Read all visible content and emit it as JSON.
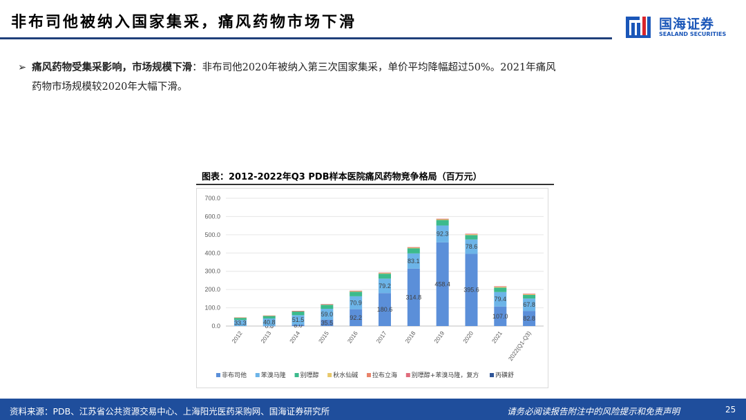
{
  "header": {
    "title": "非布司他被纳入国家集采，痛风药物市场下滑",
    "logo_cn": "国海证券",
    "logo_en": "SEALAND SECURITIES"
  },
  "bullet": {
    "arrow": "➢",
    "bold": "痛风药物受集采影响，市场规模下滑",
    "line1": "：非布司他2020年被纳入第三次国家集采，单价平均降幅超过50%。2021年痛风",
    "line2": "药物市场规模较2020年大幅下滑。"
  },
  "chart_title": "图表：2012-2022年Q3 PDB样本医院痛风药物竞争格局（百万元）",
  "chart_data": {
    "type": "bar",
    "stacked": true,
    "categories": [
      "2012",
      "2013",
      "2014",
      "2015",
      "2016",
      "2017",
      "2018",
      "2019",
      "2020",
      "2021",
      "2022(Q1-Q3)"
    ],
    "ylim": [
      0,
      700
    ],
    "yticks": [
      "0.0",
      "100.0",
      "200.0",
      "300.0",
      "400.0",
      "500.0",
      "600.0",
      "700.0"
    ],
    "grid": true,
    "legend_position": "bottom",
    "series": [
      {
        "name": "非布司他",
        "color": "#5b8fd9",
        "values": [
          0,
          0.8,
          8.0,
          35.5,
          92.2,
          180.6,
          314.8,
          458.4,
          395.6,
          107.0,
          82.8
        ],
        "labels": [
          "",
          "0.8",
          "8.0",
          "35.5",
          "92.2",
          "180.6",
          "314.8",
          "458.4",
          "395.6",
          "107.0",
          "82.8"
        ]
      },
      {
        "name": "苯溴马隆",
        "color": "#6cb4e8",
        "values": [
          33.3,
          40.8,
          51.5,
          59.0,
          70.9,
          79.2,
          83.1,
          92.3,
          78.6,
          79.4,
          67.8
        ],
        "labels": [
          "33.3",
          "40.8",
          "51.5",
          "59.0",
          "70.9",
          "79.2",
          "83.1",
          "92.3",
          "78.6",
          "79.4",
          "67.8"
        ]
      },
      {
        "name": "别嘌醇",
        "color": "#3cba8c",
        "values": [
          12,
          14,
          20,
          22,
          25,
          27,
          28,
          30,
          24,
          24,
          20
        ]
      },
      {
        "name": "秋水仙碱",
        "color": "#e8c86a",
        "values": [
          1.5,
          1.5,
          2,
          2,
          3,
          3,
          3.5,
          4,
          4,
          4,
          3.5
        ]
      },
      {
        "name": "拉布立海",
        "color": "#e9836a",
        "values": [
          0.5,
          0.5,
          1,
          1,
          1.5,
          2,
          2,
          2,
          2.5,
          2.5,
          2
        ]
      },
      {
        "name": "别嘌醇+苯溴马隆，复方",
        "color": "#e06c7c",
        "values": [
          0,
          0,
          0.5,
          0.5,
          1,
          1,
          1,
          1,
          1,
          1,
          1
        ]
      },
      {
        "name": "丙磺舒",
        "color": "#2f5597",
        "values": [
          0,
          0,
          0,
          0,
          0,
          0,
          0,
          0,
          0,
          0,
          0
        ]
      }
    ]
  },
  "footer": {
    "source": "资料来源：PDB、江苏省公共资源交易中心、上海阳光医药采购网、国海证券研究所",
    "disclaimer": "请务必阅读报告附注中的风险提示和免责声明",
    "page": "25"
  }
}
